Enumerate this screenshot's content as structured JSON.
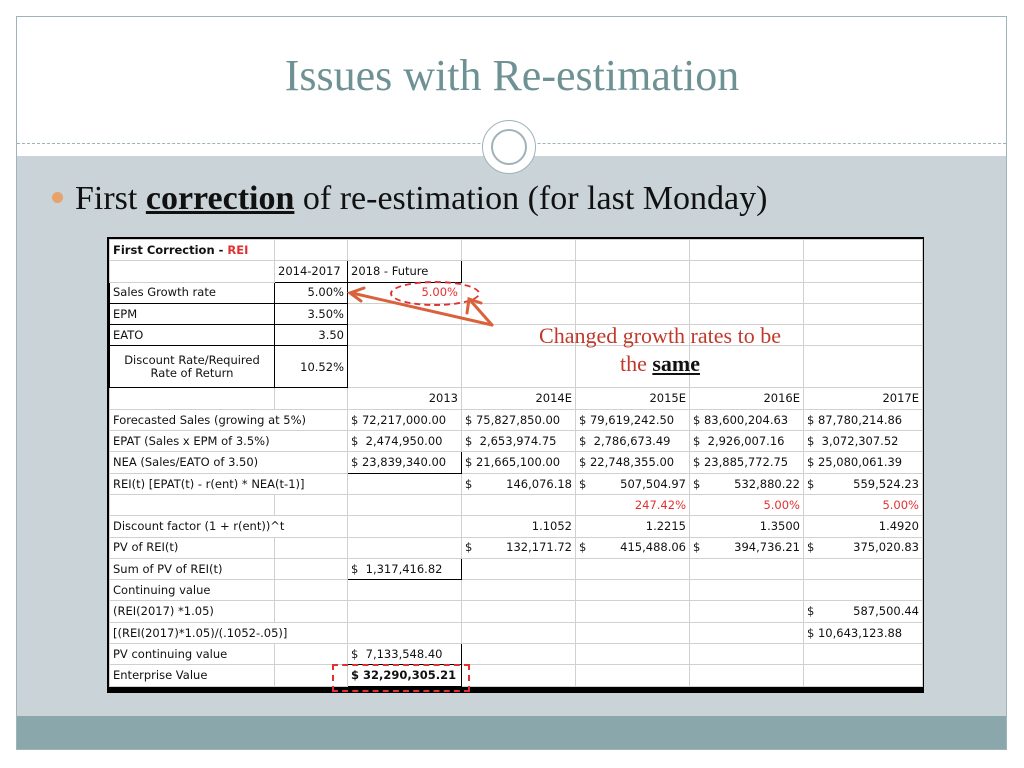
{
  "slide": {
    "title": "Issues with Re-estimation",
    "bullet": {
      "prefix": "First ",
      "emphasis": "correction",
      "suffix": " of re-estimation (for last Monday)"
    },
    "callout": {
      "line1": "Changed growth rates to be",
      "line2_prefix": "the ",
      "line2_emphasis": "same"
    }
  },
  "spreadsheet": {
    "title_plain": "First Correction - ",
    "title_red": "REI",
    "header_2014": "2014-2017",
    "header_2018": "2018 - Future",
    "rows": {
      "sales_growth": {
        "label": "Sales Growth rate",
        "v1": "5.00%",
        "v2": "5.00%"
      },
      "epm": {
        "label": "EPM",
        "v1": "3.50%"
      },
      "eato": {
        "label": "EATO",
        "v1": "3.50"
      },
      "discount": {
        "label": "Discount Rate/Required Rate of Return",
        "v1": "10.52%"
      }
    },
    "years": [
      "2013",
      "2014E",
      "2015E",
      "2016E",
      "2017E"
    ],
    "forecast_sales": {
      "label": "Forecasted Sales (growing at 5%)",
      "vals": [
        "$ 72,217,000.00",
        "$ 75,827,850.00",
        "$ 79,619,242.50",
        "$ 83,600,204.63",
        "$ 87,780,214.86"
      ]
    },
    "epat": {
      "label": "EPAT (Sales x EPM of 3.5%)",
      "vals": [
        "2,474,950.00",
        "2,653,974.75",
        "2,786,673.49",
        "2,926,007.16",
        "3,072,307.52"
      ]
    },
    "nea": {
      "label": "NEA (Sales/EATO of 3.50)",
      "vals": [
        "$ 23,839,340.00",
        "$ 21,665,100.00",
        "$ 22,748,355.00",
        "$ 23,885,772.75",
        "$ 25,080,061.39"
      ]
    },
    "rei": {
      "label": "REI(t) [EPAT(t) - r(ent) * NEA(t-1)]",
      "vals": [
        "146,076.18",
        "507,504.97",
        "532,880.22",
        "559,524.23"
      ]
    },
    "rei_growth": {
      "vals": [
        "247.42%",
        "5.00%",
        "5.00%"
      ]
    },
    "discount_factor": {
      "label": "Discount factor (1 + r(ent))^t",
      "vals": [
        "1.1052",
        "1.2215",
        "1.3500",
        "1.4920"
      ]
    },
    "pv_rei": {
      "label": "PV of REI(t)",
      "vals": [
        "132,171.72",
        "415,488.06",
        "394,736.21",
        "375,020.83"
      ]
    },
    "sum_pv": {
      "label": "Sum of PV of REI(t)",
      "val": "1,317,416.82"
    },
    "continuing_value": {
      "label": "Continuing value"
    },
    "rei_2017": {
      "label": "(REI(2017) *1.05)",
      "val": "587,500.44"
    },
    "cv_formula": {
      "label": "[(REI(2017)*1.05)/(.1052-.05)]",
      "val": "$ 10,643,123.88"
    },
    "pv_cv": {
      "label": "PV continuing value",
      "val": "7,133,548.40"
    },
    "enterprise": {
      "label": "Enterprise Value",
      "val": "$ 32,290,305.21"
    },
    "dollar": "$"
  },
  "colors": {
    "accent": "#6e9194",
    "annotation_red": "#e03131",
    "bullet": "#e8a26b",
    "background_band": "#c9d3d8"
  }
}
